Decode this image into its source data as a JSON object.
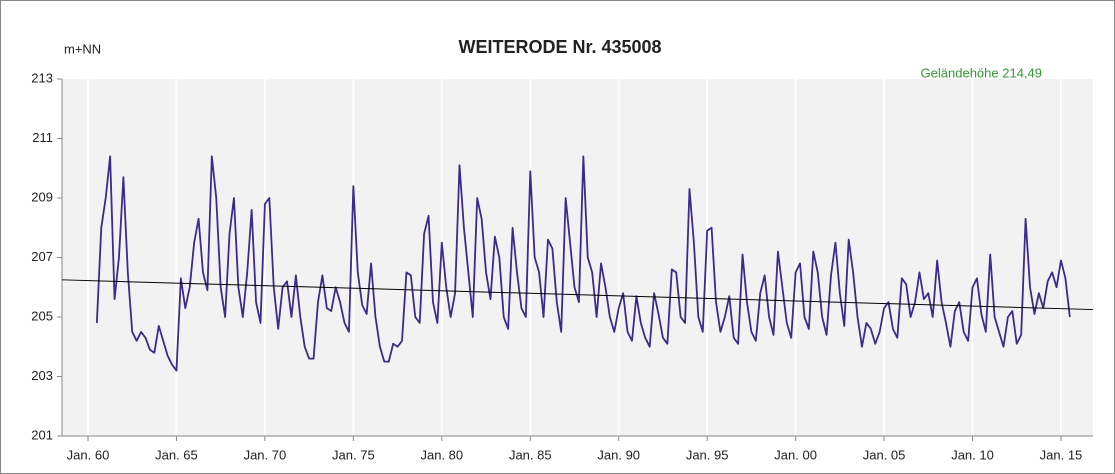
{
  "chart_data": {
    "type": "line",
    "title": "WEITERODE  Nr. 435008",
    "y_label": "m+NN",
    "annotation": {
      "text": "Geländehöhe 214,49",
      "color": "#339933"
    },
    "xlim": [
      1958.53,
      2016.81
    ],
    "ylim": [
      201,
      213
    ],
    "yticks": [
      201,
      203,
      205,
      207,
      209,
      211,
      213
    ],
    "xticks": [
      {
        "value": 1960,
        "label": "Jan. 60"
      },
      {
        "value": 1965,
        "label": "Jan. 65"
      },
      {
        "value": 1970,
        "label": "Jan. 70"
      },
      {
        "value": 1975,
        "label": "Jan. 75"
      },
      {
        "value": 1980,
        "label": "Jan. 80"
      },
      {
        "value": 1985,
        "label": "Jan. 85"
      },
      {
        "value": 1990,
        "label": "Jan. 90"
      },
      {
        "value": 1995,
        "label": "Jan. 95"
      },
      {
        "value": 2000,
        "label": "Jan. 00"
      },
      {
        "value": 2005,
        "label": "Jan. 05"
      },
      {
        "value": 2010,
        "label": "Jan. 10"
      },
      {
        "value": 2015,
        "label": "Jan. 15"
      }
    ],
    "grid": true,
    "x": [
      1960.5,
      1960.75,
      1961,
      1961.25,
      1961.5,
      1961.75,
      1962,
      1962.25,
      1962.5,
      1962.75,
      1963,
      1963.25,
      1963.5,
      1963.75,
      1964,
      1964.25,
      1964.5,
      1964.75,
      1965,
      1965.25,
      1965.5,
      1965.75,
      1966,
      1966.25,
      1966.5,
      1966.75,
      1967,
      1967.25,
      1967.5,
      1967.75,
      1968,
      1968.25,
      1968.5,
      1968.75,
      1969,
      1969.25,
      1969.5,
      1969.75,
      1970,
      1970.25,
      1970.5,
      1970.75,
      1971,
      1971.25,
      1971.5,
      1971.75,
      1972,
      1972.25,
      1972.5,
      1972.75,
      1973,
      1973.25,
      1973.5,
      1973.75,
      1974,
      1974.25,
      1974.5,
      1974.75,
      1975,
      1975.25,
      1975.5,
      1975.75,
      1976,
      1976.25,
      1976.5,
      1976.75,
      1977,
      1977.25,
      1977.5,
      1977.75,
      1978,
      1978.25,
      1978.5,
      1978.75,
      1979,
      1979.25,
      1979.5,
      1979.75,
      1980,
      1980.25,
      1980.5,
      1980.75,
      1981,
      1981.25,
      1981.5,
      1981.75,
      1982,
      1982.25,
      1982.5,
      1982.75,
      1983,
      1983.25,
      1983.5,
      1983.75,
      1984,
      1984.25,
      1984.5,
      1984.75,
      1985,
      1985.25,
      1985.5,
      1985.75,
      1986,
      1986.25,
      1986.5,
      1986.75,
      1987,
      1987.25,
      1987.5,
      1987.75,
      1988,
      1988.25,
      1988.5,
      1988.75,
      1989,
      1989.25,
      1989.5,
      1989.75,
      1990,
      1990.25,
      1990.5,
      1990.75,
      1991,
      1991.25,
      1991.5,
      1991.75,
      1992,
      1992.25,
      1992.5,
      1992.75,
      1993,
      1993.25,
      1993.5,
      1993.75,
      1994,
      1994.25,
      1994.5,
      1994.75,
      1995,
      1995.25,
      1995.5,
      1995.75,
      1996,
      1996.25,
      1996.5,
      1996.75,
      1997,
      1997.25,
      1997.5,
      1997.75,
      1998,
      1998.25,
      1998.5,
      1998.75,
      1999,
      1999.25,
      1999.5,
      1999.75,
      2000,
      2000.25,
      2000.5,
      2000.75,
      2001,
      2001.25,
      2001.5,
      2001.75,
      2002,
      2002.25,
      2002.5,
      2002.75,
      2003,
      2003.25,
      2003.5,
      2003.75,
      2004,
      2004.25,
      2004.5,
      2004.75,
      2005,
      2005.25,
      2005.5,
      2005.75,
      2006,
      2006.25,
      2006.5,
      2006.75,
      2007,
      2007.25,
      2007.5,
      2007.75,
      2008,
      2008.25,
      2008.5,
      2008.75,
      2009,
      2009.25,
      2009.5,
      2009.75,
      2010,
      2010.25,
      2010.5,
      2010.75,
      2011,
      2011.25,
      2011.5,
      2011.75,
      2012,
      2012.25,
      2012.5,
      2012.75,
      2013,
      2013.25,
      2013.5,
      2013.75,
      2014,
      2014.25,
      2014.5,
      2014.75,
      2015,
      2015.25,
      2015.5
    ],
    "series": [
      {
        "color": "#3d2a8c",
        "values": [
          204.8,
          208.0,
          209.0,
          210.4,
          205.6,
          207.0,
          209.7,
          206.5,
          204.5,
          204.2,
          204.5,
          204.3,
          203.9,
          203.8,
          204.7,
          204.2,
          203.7,
          203.4,
          203.2,
          206.3,
          205.3,
          206.0,
          207.5,
          208.3,
          206.5,
          205.9,
          210.4,
          209.0,
          206.0,
          205.0,
          207.8,
          209.0,
          206.0,
          205.0,
          206.5,
          208.6,
          205.5,
          204.8,
          208.8,
          209.0,
          206.0,
          204.6,
          206.0,
          206.2,
          205.0,
          206.4,
          205.0,
          204.0,
          203.6,
          203.6,
          205.5,
          206.4,
          205.3,
          205.2,
          206.0,
          205.5,
          204.8,
          204.5,
          209.4,
          206.5,
          205.4,
          205.1,
          206.8,
          205.0,
          204.0,
          203.5,
          203.5,
          204.1,
          204.0,
          204.2,
          206.5,
          206.4,
          205.0,
          204.8,
          207.8,
          208.4,
          205.5,
          204.8,
          207.5,
          206.0,
          205.0,
          205.8,
          210.1,
          208.0,
          206.5,
          205.0,
          209.0,
          208.3,
          206.5,
          205.6,
          207.7,
          207.0,
          205.0,
          204.6,
          208.0,
          206.5,
          205.3,
          205.0,
          209.9,
          207.0,
          206.5,
          205.0,
          207.6,
          207.3,
          205.5,
          204.5,
          209.0,
          207.5,
          206.0,
          205.5,
          210.4,
          207.0,
          206.5,
          205.0,
          206.8,
          206.0,
          205.0,
          204.5,
          205.3,
          205.8,
          204.5,
          204.2,
          205.7,
          204.8,
          204.3,
          204.0,
          205.8,
          205.1,
          204.3,
          204.1,
          206.6,
          206.5,
          205.0,
          204.8,
          209.3,
          207.5,
          205.0,
          204.5,
          207.9,
          208.0,
          205.5,
          204.5,
          205.0,
          205.7,
          204.3,
          204.1,
          207.1,
          205.5,
          204.5,
          204.2,
          205.8,
          206.4,
          205.0,
          204.4,
          207.2,
          206.0,
          204.8,
          204.3,
          206.5,
          206.8,
          205.0,
          204.6,
          207.2,
          206.5,
          205.0,
          204.4,
          206.4,
          207.5,
          205.8,
          204.7,
          207.6,
          206.5,
          205.0,
          204.0,
          204.8,
          204.6,
          204.1,
          204.5,
          205.3,
          205.5,
          204.6,
          204.3,
          206.3,
          206.1,
          205.0,
          205.5,
          206.5,
          205.6,
          205.8,
          205.0,
          206.9,
          205.5,
          204.8,
          204.0,
          205.2,
          205.5,
          204.5,
          204.2,
          206.0,
          206.3,
          205.1,
          204.5,
          207.1,
          205.0,
          204.5,
          204.0,
          205.0,
          205.2,
          204.1,
          204.4,
          208.3,
          206.0,
          205.1,
          205.8,
          205.3,
          206.2,
          206.5,
          206.0,
          206.9,
          206.3,
          205.0
        ]
      }
    ],
    "trendline": {
      "color": "#000000",
      "x": [
        1958.53,
        2016.81
      ],
      "values": [
        206.25,
        205.25
      ]
    }
  }
}
